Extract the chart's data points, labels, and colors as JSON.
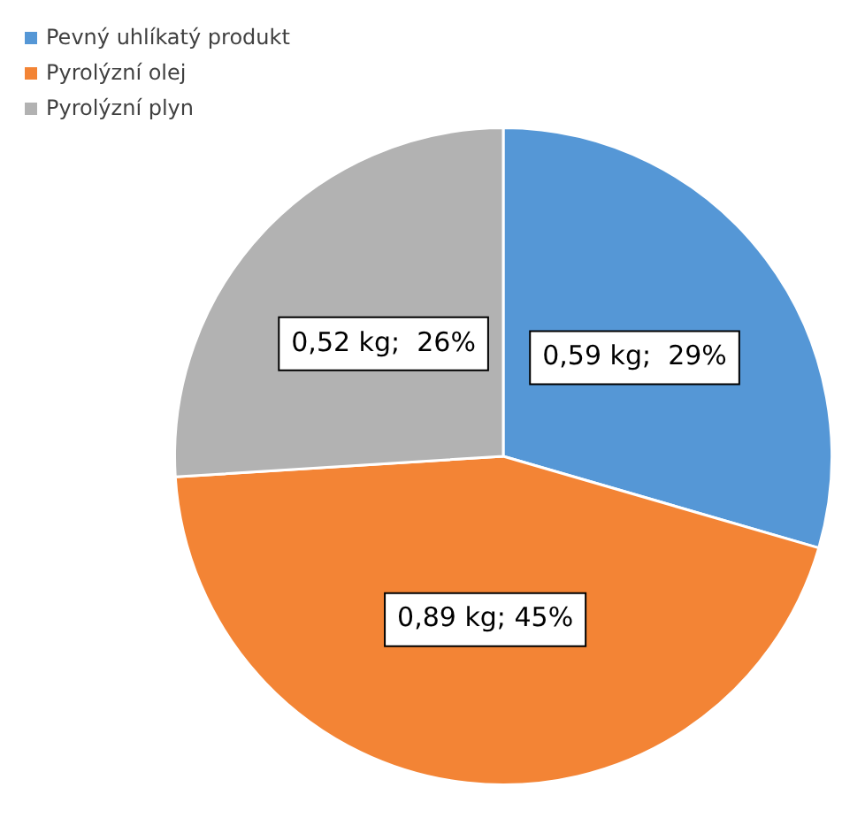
{
  "chart_data": {
    "type": "pie",
    "categories": [
      "Pevný uhlíkatý produkt",
      "Pyrolýzní olej",
      "Pyrolýzní plyn"
    ],
    "values": [
      0.59,
      0.89,
      0.52
    ],
    "value_labels": [
      "0,59 kg;  29%",
      "0,89 kg; 45%",
      "0,52 kg;  26%"
    ],
    "colors": [
      "#5597d6",
      "#f38435",
      "#b2b2b2"
    ],
    "legend": "top left"
  }
}
